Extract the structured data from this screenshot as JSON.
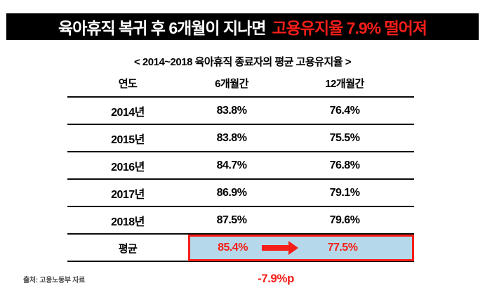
{
  "header": {
    "title_prefix": "육아휴직 복귀 후 6개월이 지나면",
    "title_highlight": "고용유지율 7.9% 떨어져"
  },
  "subtitle": "< 2014~2018 육아휴직 종료자의 평균 고용유지율 >",
  "table": {
    "headers": [
      "연도",
      "6개월간",
      "12개월간"
    ],
    "rows": [
      {
        "year": "2014년",
        "m6": "83.8%",
        "m12": "76.4%"
      },
      {
        "year": "2015년",
        "m6": "83.8%",
        "m12": "75.5%"
      },
      {
        "year": "2016년",
        "m6": "84.7%",
        "m12": "76.8%"
      },
      {
        "year": "2017년",
        "m6": "86.9%",
        "m12": "79.1%"
      },
      {
        "year": "2018년",
        "m6": "87.5%",
        "m12": "79.6%"
      }
    ],
    "average": {
      "label": "평균",
      "m6": "85.4%",
      "m12": "77.5%"
    }
  },
  "annotation": {
    "delta": "-7.9%p"
  },
  "source": "출처: 고용노동부 자료",
  "colors": {
    "accent_red": "#f61e18",
    "highlight_blue": "#b5d9ea",
    "bar_black": "#000000"
  },
  "chart_data": {
    "type": "table",
    "title": "육아휴직 복귀 후 6개월이 지나면 고용유지율 7.9% 떨어져",
    "subtitle": "< 2014~2018 육아휴직 종료자의 평균 고용유지율 >",
    "columns": [
      "연도",
      "6개월간",
      "12개월간"
    ],
    "rows": [
      [
        "2014년",
        83.8,
        76.4
      ],
      [
        "2015년",
        83.8,
        75.5
      ],
      [
        "2016년",
        84.7,
        76.8
      ],
      [
        "2017년",
        86.9,
        79.1
      ],
      [
        "2018년",
        87.5,
        79.6
      ],
      [
        "평균",
        85.4,
        77.5
      ]
    ],
    "annotations": [
      "-7.9%p"
    ],
    "source": "출처: 고용노동부 자료"
  }
}
